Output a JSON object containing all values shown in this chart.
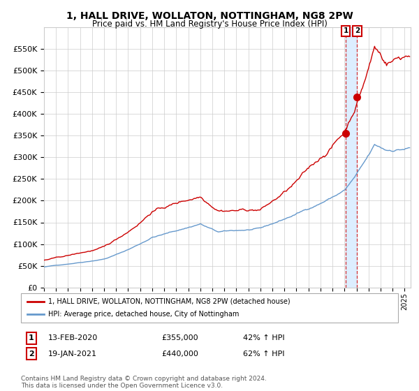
{
  "title": "1, HALL DRIVE, WOLLATON, NOTTINGHAM, NG8 2PW",
  "subtitle": "Price paid vs. HM Land Registry's House Price Index (HPI)",
  "xlim_start": 1995.0,
  "xlim_end": 2025.5,
  "ylim": [
    0,
    600000
  ],
  "yticks": [
    0,
    50000,
    100000,
    150000,
    200000,
    250000,
    300000,
    350000,
    400000,
    450000,
    500000,
    550000
  ],
  "sale1_date": 2020.1,
  "sale1_price": 355000,
  "sale1_label": "13-FEB-2020",
  "sale1_hpi": "42% ↑ HPI",
  "sale2_date": 2021.05,
  "sale2_price": 440000,
  "sale2_label": "19-JAN-2021",
  "sale2_hpi": "62% ↑ HPI",
  "legend_line1": "1, HALL DRIVE, WOLLATON, NOTTINGHAM, NG8 2PW (detached house)",
  "legend_line2": "HPI: Average price, detached house, City of Nottingham",
  "footnote": "Contains HM Land Registry data © Crown copyright and database right 2024.\nThis data is licensed under the Open Government Licence v3.0.",
  "line_color_red": "#cc0000",
  "line_color_blue": "#6699cc",
  "background_color": "#ffffff",
  "grid_color": "#cccccc",
  "shade_color": "#ddeeff"
}
